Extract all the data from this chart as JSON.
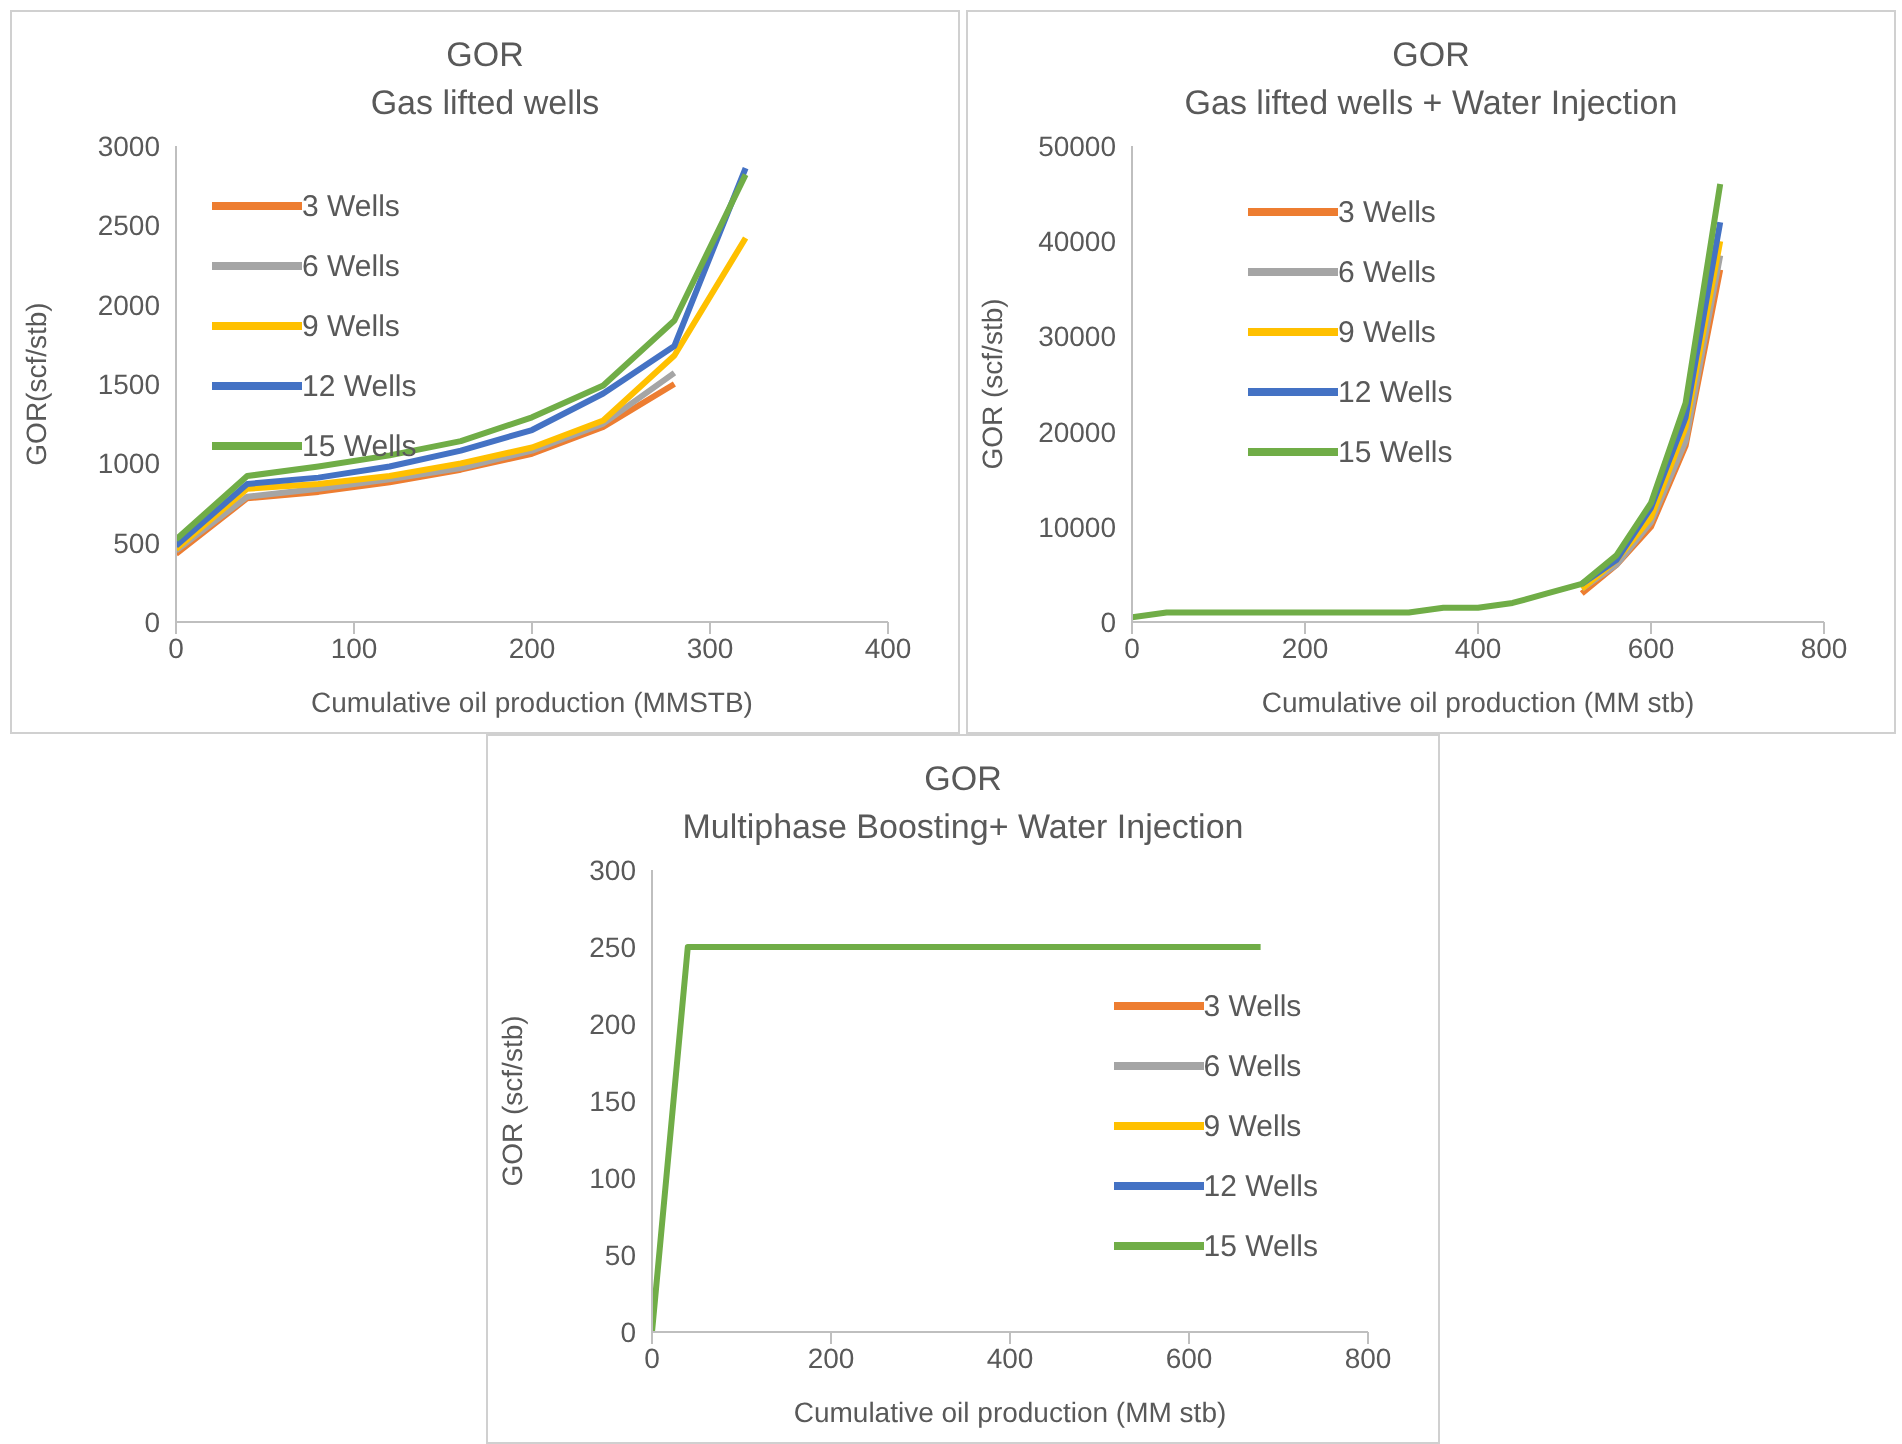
{
  "chart_data": [
    {
      "type": "line",
      "title": "GOR",
      "subtitle": "Gas lifted wells",
      "xlabel": "Cumulative oil production (MMSTB)",
      "ylabel": "GOR(scf/stb)",
      "x": [
        0,
        40,
        80,
        120,
        160,
        200,
        240,
        280,
        320
      ],
      "xlim": [
        0,
        400
      ],
      "xticks": [
        0,
        100,
        200,
        300,
        400
      ],
      "ylim": [
        0,
        3000
      ],
      "yticks": [
        0,
        500,
        1000,
        1500,
        2000,
        2500,
        3000
      ],
      "grid": false,
      "legend": "top left",
      "marker": "none",
      "line_style": "solid",
      "series": [
        {
          "name": "3 Wells",
          "color": "#ed7d31",
          "values": [
            430,
            780,
            820,
            880,
            960,
            1060,
            1230,
            1500,
            null
          ]
        },
        {
          "name": "6 Wells",
          "color": "#a5a5a5",
          "values": [
            450,
            790,
            840,
            900,
            970,
            1080,
            1250,
            1570,
            null
          ]
        },
        {
          "name": "9 Wells",
          "color": "#ffc000",
          "values": [
            460,
            840,
            870,
            920,
            1000,
            1100,
            1270,
            1680,
            2420
          ]
        },
        {
          "name": "12 Wells",
          "color": "#4472c4",
          "values": [
            480,
            870,
            910,
            980,
            1080,
            1210,
            1440,
            1740,
            2860
          ]
        },
        {
          "name": "15 Wells",
          "color": "#70ad47",
          "values": [
            520,
            920,
            980,
            1050,
            1140,
            1290,
            1490,
            1900,
            2820
          ]
        }
      ]
    },
    {
      "type": "line",
      "title": "GOR",
      "subtitle": "Gas lifted wells + Water Injection",
      "xlabel": "Cumulative oil production (MM stb)",
      "ylabel": "GOR (scf/stb)",
      "x": [
        0,
        40,
        80,
        120,
        160,
        200,
        240,
        280,
        320,
        360,
        400,
        440,
        480,
        520,
        560,
        600,
        640,
        680
      ],
      "xlim": [
        0,
        800
      ],
      "xticks": [
        0,
        200,
        400,
        600,
        800
      ],
      "ylim": [
        0,
        50000
      ],
      "yticks": [
        0,
        10000,
        20000,
        30000,
        40000,
        50000
      ],
      "grid": false,
      "legend": "top left",
      "marker": "none",
      "line_style": "solid",
      "series": [
        {
          "name": "3 Wells",
          "color": "#ed7d31",
          "values": [
            null,
            null,
            null,
            null,
            null,
            null,
            null,
            null,
            null,
            null,
            null,
            null,
            null,
            3000,
            6000,
            10000,
            18500,
            37000
          ]
        },
        {
          "name": "6 Wells",
          "color": "#a5a5a5",
          "values": [
            null,
            null,
            null,
            null,
            null,
            null,
            null,
            null,
            null,
            null,
            null,
            null,
            null,
            3500,
            6000,
            10500,
            19000,
            38500
          ]
        },
        {
          "name": "9 Wells",
          "color": "#ffc000",
          "values": [
            null,
            null,
            null,
            null,
            null,
            null,
            null,
            null,
            null,
            null,
            null,
            null,
            null,
            3500,
            6500,
            11000,
            20500,
            40000
          ]
        },
        {
          "name": "12 Wells",
          "color": "#4472c4",
          "values": [
            null,
            null,
            null,
            null,
            null,
            null,
            null,
            null,
            null,
            null,
            null,
            null,
            null,
            4000,
            6500,
            12000,
            21500,
            42000
          ]
        },
        {
          "name": "15 Wells",
          "color": "#70ad47",
          "values": [
            500,
            1000,
            1000,
            1000,
            1000,
            1000,
            1000,
            1000,
            1000,
            1500,
            1500,
            2000,
            3000,
            4000,
            7000,
            12500,
            23000,
            46000
          ]
        }
      ]
    },
    {
      "type": "line",
      "title": "GOR",
      "subtitle": "Multiphase Boosting+ Water Injection",
      "xlabel": "Cumulative oil production (MM stb)",
      "ylabel": "GOR (scf/stb)",
      "x": [
        0,
        40,
        80,
        120,
        160,
        200,
        240,
        280,
        320,
        360,
        400,
        440,
        480,
        520,
        560,
        600,
        640,
        680
      ],
      "xlim": [
        0,
        800
      ],
      "xticks": [
        0,
        200,
        400,
        600,
        800
      ],
      "ylim": [
        0,
        300
      ],
      "yticks": [
        0,
        50,
        100,
        150,
        200,
        250,
        300
      ],
      "grid": false,
      "legend": "right",
      "marker": "none",
      "line_style": "solid",
      "series": [
        {
          "name": "3 Wells",
          "color": "#ed7d31",
          "values": [
            null,
            null,
            null,
            null,
            null,
            null,
            null,
            null,
            null,
            null,
            null,
            null,
            null,
            null,
            null,
            null,
            null,
            null
          ]
        },
        {
          "name": "6 Wells",
          "color": "#a5a5a5",
          "values": [
            null,
            null,
            null,
            null,
            null,
            null,
            null,
            null,
            null,
            null,
            null,
            null,
            null,
            null,
            null,
            null,
            null,
            null
          ]
        },
        {
          "name": "9 Wells",
          "color": "#ffc000",
          "values": [
            null,
            null,
            null,
            null,
            null,
            null,
            null,
            null,
            null,
            null,
            null,
            null,
            null,
            null,
            null,
            null,
            null,
            null
          ]
        },
        {
          "name": "12 Wells",
          "color": "#4472c4",
          "values": [
            null,
            null,
            null,
            null,
            null,
            null,
            null,
            null,
            null,
            null,
            null,
            null,
            null,
            null,
            null,
            null,
            null,
            null
          ]
        },
        {
          "name": "15 Wells",
          "color": "#70ad47",
          "values": [
            0,
            250,
            250,
            250,
            250,
            250,
            250,
            250,
            250,
            250,
            250,
            250,
            250,
            250,
            250,
            250,
            250,
            250
          ]
        }
      ]
    }
  ]
}
